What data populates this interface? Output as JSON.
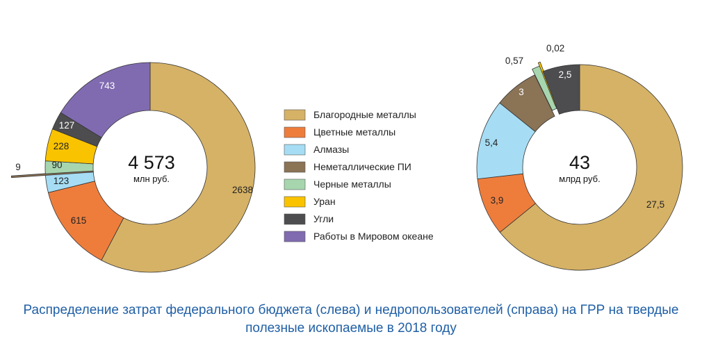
{
  "chart_data": [
    {
      "type": "pie",
      "donut": true,
      "total_label": "4 573",
      "unit_label": "млн руб.",
      "slices": [
        {
          "name": "Благородные металлы",
          "value": 2638,
          "label": "2638",
          "color": "#d6b266",
          "label_color": "#222222"
        },
        {
          "name": "Цветные металлы",
          "value": 615,
          "label": "615",
          "color": "#ee7d3c",
          "label_color": "#222222"
        },
        {
          "name": "Алмазы",
          "value": 123,
          "label": "123",
          "color": "#a6ddf4",
          "label_color": "#222222"
        },
        {
          "name": "Неметаллические ПИ",
          "value": 9,
          "label": "9",
          "color": "#8b7356",
          "label_color": "#222222"
        },
        {
          "name": "Черные металлы",
          "value": 90,
          "label": "90",
          "color": "#a7d6ae",
          "label_color": "#222222"
        },
        {
          "name": "Уран",
          "value": 228,
          "label": "228",
          "color": "#fac300",
          "label_color": "#222222"
        },
        {
          "name": "Угли",
          "value": 127,
          "label": "127",
          "color": "#4d4d4f",
          "label_color": "#ffffff"
        },
        {
          "name": "Работы в Мировом океане",
          "value": 743,
          "label": "743",
          "color": "#806bb1",
          "label_color": "#ffffff"
        }
      ]
    },
    {
      "type": "pie",
      "donut": true,
      "total_label": "43",
      "unit_label": "млрд руб.",
      "slices": [
        {
          "name": "Благородные металлы",
          "value": 27.5,
          "label": "27,5",
          "color": "#d6b266",
          "label_color": "#222222"
        },
        {
          "name": "Цветные металлы",
          "value": 3.9,
          "label": "3,9",
          "color": "#ee7d3c",
          "label_color": "#222222"
        },
        {
          "name": "Алмазы",
          "value": 5.4,
          "label": "5,4",
          "color": "#a6ddf4",
          "label_color": "#222222"
        },
        {
          "name": "Неметаллические ПИ",
          "value": 3,
          "label": "3",
          "color": "#8b7356",
          "label_color": "#ffffff"
        },
        {
          "name": "Черные металлы",
          "value": 0.57,
          "label": "0,57",
          "color": "#a7d6ae",
          "label_color": "#222222"
        },
        {
          "name": "Уран",
          "value": 0.02,
          "label": "0,02",
          "color": "#fac300",
          "label_color": "#222222"
        },
        {
          "name": "Угли",
          "value": 2.5,
          "label": "2,5",
          "color": "#4d4d4f",
          "label_color": "#ffffff"
        }
      ]
    }
  ],
  "legend": [
    {
      "label": "Благородные металлы",
      "color": "#d6b266"
    },
    {
      "label": "Цветные металлы",
      "color": "#ee7d3c"
    },
    {
      "label": "Алмазы",
      "color": "#a6ddf4"
    },
    {
      "label": "Неметаллические ПИ",
      "color": "#8b7356"
    },
    {
      "label": "Черные металлы",
      "color": "#a7d6ae"
    },
    {
      "label": "Уран",
      "color": "#fac300"
    },
    {
      "label": "Угли",
      "color": "#4d4d4f"
    },
    {
      "label": "Работы в Мировом океане",
      "color": "#806bb1"
    }
  ],
  "caption": {
    "line1": "Распределение затрат федерального бюджета (слева) и недропользователей (справа) на ГРР на твердые",
    "line2": "полезные ископаемые в 2018 году"
  }
}
